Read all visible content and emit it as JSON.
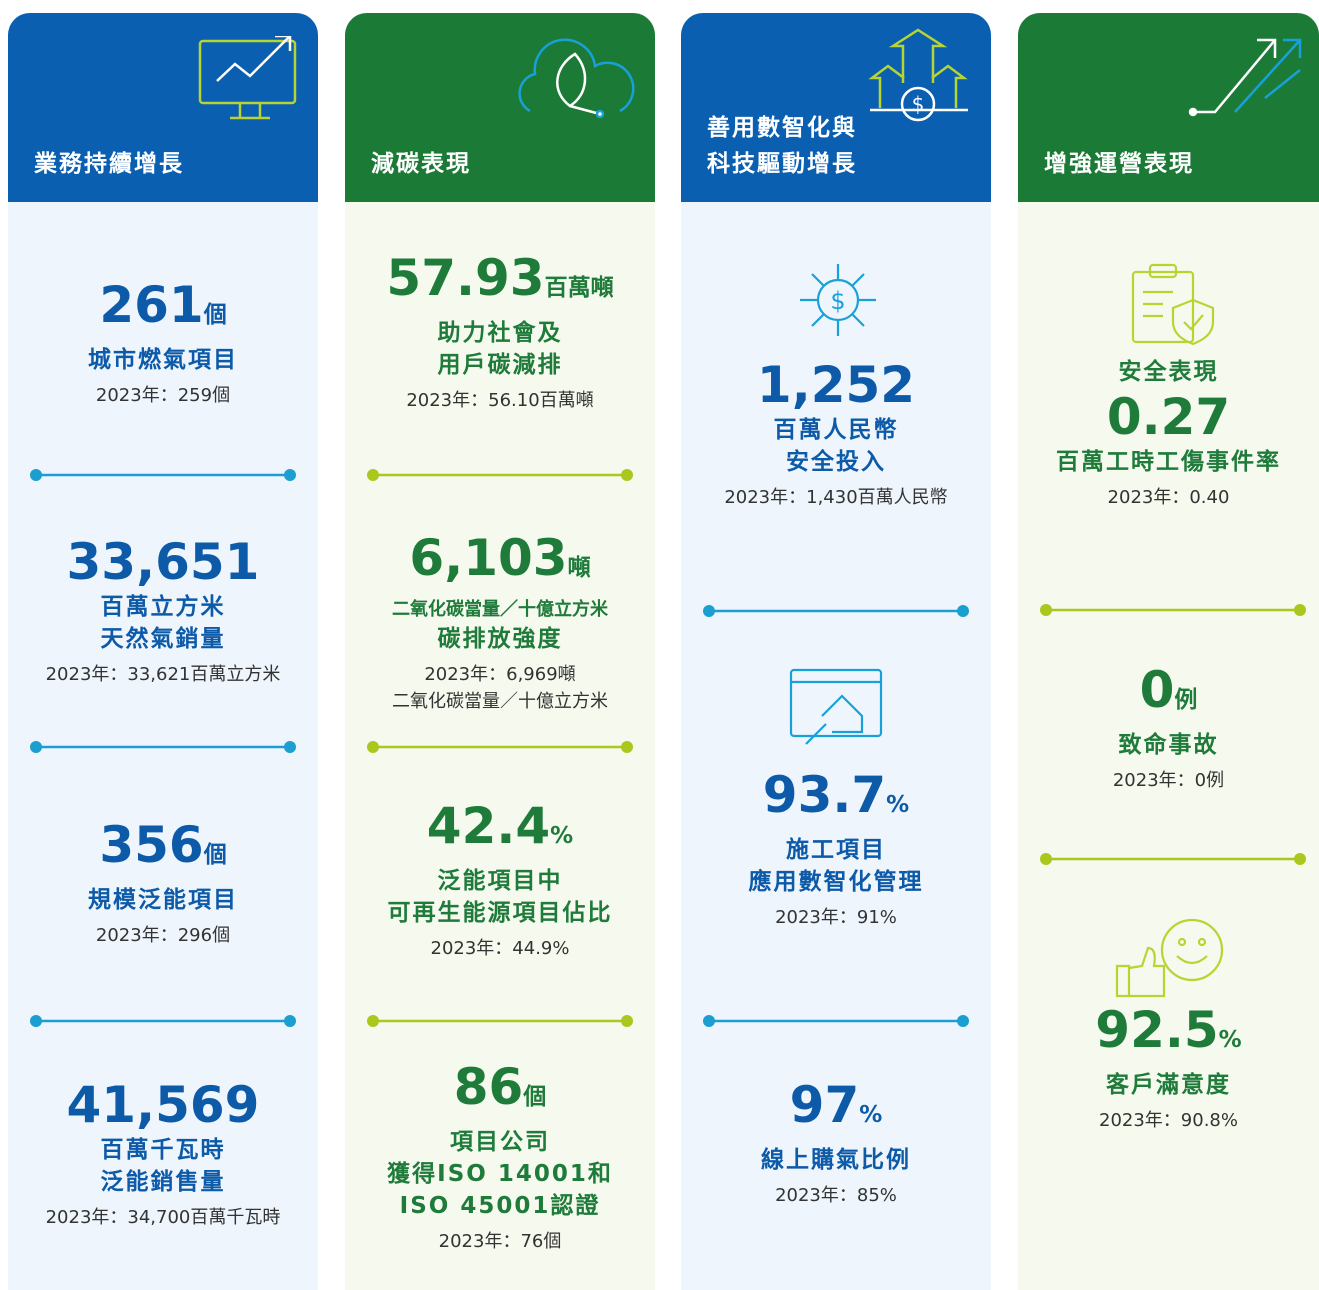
{
  "columns": [
    {
      "title": [
        "業務持續增長"
      ],
      "items": [
        {
          "value": "261",
          "unit": "個",
          "labels": [
            "城市燃氣項目"
          ],
          "prior": [
            "2023年：259個"
          ]
        },
        {
          "value": "33,651",
          "labels": [
            "百萬立方米",
            "天然氣銷量"
          ],
          "prior": [
            "2023年：33,621百萬立方米"
          ]
        },
        {
          "value": "356",
          "unit": "個",
          "labels": [
            "規模泛能項目"
          ],
          "prior": [
            "2023年：296個"
          ]
        },
        {
          "value": "41,569",
          "labels": [
            "百萬千瓦時",
            "泛能銷售量"
          ],
          "prior": [
            "2023年：34,700百萬千瓦時"
          ]
        }
      ]
    },
    {
      "title": [
        "減碳表現"
      ],
      "items": [
        {
          "value": "57.93",
          "unit": "百萬噸",
          "labels": [
            "助力社會及",
            "用戶碳減排"
          ],
          "prior": [
            "2023年：56.10百萬噸"
          ]
        },
        {
          "value": "6,103",
          "unit": "噸",
          "labels": [
            "二氧化碳當量／十億立方米",
            "碳排放強度"
          ],
          "prior": [
            "2023年：6,969噸",
            "二氧化碳當量／十億立方米"
          ]
        },
        {
          "value": "42.4",
          "unit": "%",
          "labels": [
            "泛能項目中",
            "可再生能源項目佔比"
          ],
          "prior": [
            "2023年：44.9%"
          ]
        },
        {
          "value": "86",
          "unit": "個",
          "labels": [
            "項目公司",
            "獲得ISO 14001和",
            "ISO 45001認證"
          ],
          "prior": [
            "2023年：76個"
          ]
        }
      ]
    },
    {
      "title": [
        "善用數智化與",
        "科技驅動增長"
      ],
      "items": [
        {
          "value": "1,252",
          "labels": [
            "百萬人民幣",
            "安全投入"
          ],
          "prior": [
            "2023年：1,430百萬人民幣"
          ]
        },
        {
          "value": "93.7",
          "unit": "%",
          "labels": [
            "施工項目",
            "應用數智化管理"
          ],
          "prior": [
            "2023年：91%"
          ]
        },
        {
          "value": "97",
          "unit": "%",
          "labels": [
            "線上購氣比例"
          ],
          "prior": [
            "2023年：85%"
          ]
        }
      ]
    },
    {
      "title": [
        "增強運營表現"
      ],
      "items": [
        {
          "heading": "安全表現",
          "value": "0.27",
          "labels": [
            "百萬工時工傷事件率"
          ],
          "prior": [
            "2023年：0.40"
          ]
        },
        {
          "value": "0",
          "unit": "例",
          "labels": [
            "致命事故"
          ],
          "prior": [
            "2023年：0例"
          ]
        },
        {
          "value": "92.5",
          "unit": "%",
          "labels": [
            "客戶滿意度"
          ],
          "prior": [
            "2023年：90.8%"
          ]
        }
      ]
    }
  ]
}
